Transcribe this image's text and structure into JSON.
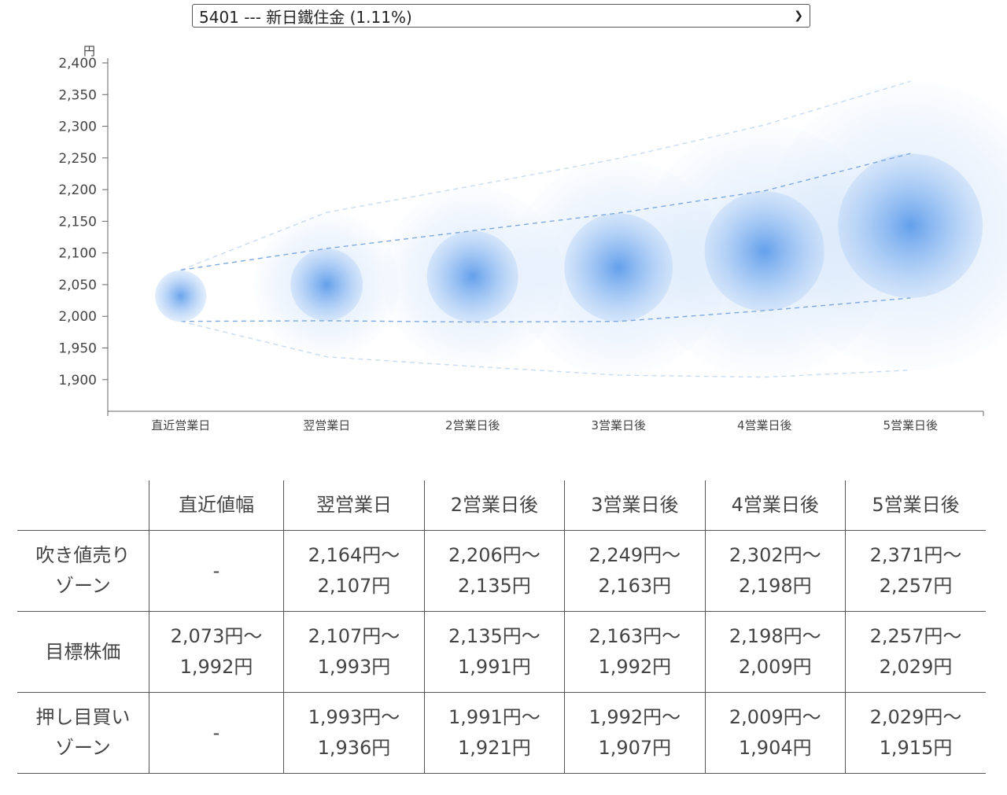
{
  "selector": {
    "value": "5401 --- 新日鐵住金 (1.11%)",
    "icon": "chevron-down-icon"
  },
  "colors": {
    "bubble": "#4f93e8",
    "grid": "#cfdcef",
    "axis": "#666666"
  },
  "chart_data": {
    "type": "bubble-band",
    "ylabel": "円",
    "ylim": [
      1860,
      2400
    ],
    "yticks": [
      1900,
      1950,
      2000,
      2050,
      2100,
      2150,
      2200,
      2250,
      2300,
      2350,
      2400
    ],
    "ytick_labels": [
      "1,900",
      "1,950",
      "2,000",
      "2,050",
      "2,100",
      "2,150",
      "2,200",
      "2,250",
      "2,300",
      "2,350",
      "2,400"
    ],
    "categories": [
      "直近営業日",
      "翌営業日",
      "2営業日後",
      "3営業日後",
      "4営業日後",
      "5営業日後"
    ],
    "points": [
      {
        "center": 2032,
        "inner": [
          1992,
          2073
        ],
        "outer": [
          1992,
          2073
        ]
      },
      {
        "center": 2050,
        "inner": [
          1993,
          2107
        ],
        "outer": [
          1936,
          2164
        ]
      },
      {
        "center": 2063,
        "inner": [
          1991,
          2135
        ],
        "outer": [
          1921,
          2206
        ]
      },
      {
        "center": 2077,
        "inner": [
          1992,
          2163
        ],
        "outer": [
          1907,
          2249
        ]
      },
      {
        "center": 2103,
        "inner": [
          2009,
          2198
        ],
        "outer": [
          1904,
          2302
        ]
      },
      {
        "center": 2143,
        "inner": [
          2029,
          2257
        ],
        "outer": [
          1915,
          2371
        ]
      }
    ]
  },
  "table": {
    "headers": [
      "",
      "直近値幅",
      "翌営業日",
      "2営業日後",
      "3営業日後",
      "4営業日後",
      "5営業日後"
    ],
    "rows": [
      {
        "label": [
          "吹き値売り",
          "ゾーン"
        ],
        "cells": [
          [
            "-"
          ],
          [
            "2,164円〜",
            "2,107円"
          ],
          [
            "2,206円〜",
            "2,135円"
          ],
          [
            "2,249円〜",
            "2,163円"
          ],
          [
            "2,302円〜",
            "2,198円"
          ],
          [
            "2,371円〜",
            "2,257円"
          ]
        ]
      },
      {
        "label": [
          "目標株価"
        ],
        "cells": [
          [
            "2,073円〜",
            "1,992円"
          ],
          [
            "2,107円〜",
            "1,993円"
          ],
          [
            "2,135円〜",
            "1,991円"
          ],
          [
            "2,163円〜",
            "1,992円"
          ],
          [
            "2,198円〜",
            "2,009円"
          ],
          [
            "2,257円〜",
            "2,029円"
          ]
        ]
      },
      {
        "label": [
          "押し目買い",
          "ゾーン"
        ],
        "cells": [
          [
            "-"
          ],
          [
            "1,993円〜",
            "1,936円"
          ],
          [
            "1,991円〜",
            "1,921円"
          ],
          [
            "1,992円〜",
            "1,907円"
          ],
          [
            "2,009円〜",
            "1,904円"
          ],
          [
            "2,029円〜",
            "1,915円"
          ]
        ]
      }
    ]
  }
}
